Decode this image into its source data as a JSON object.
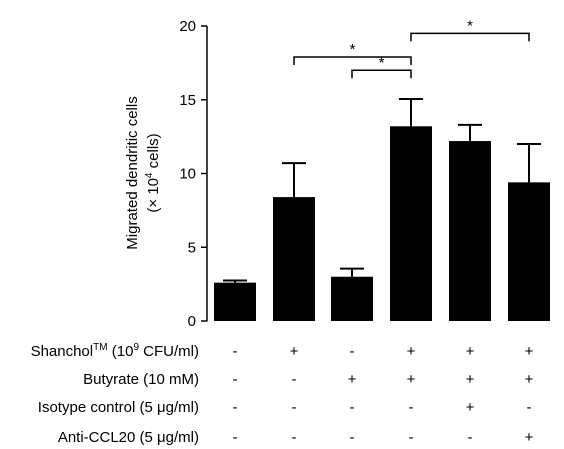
{
  "chart_data": {
    "type": "bar",
    "ylabel_line1": "Migrated dendritic cells",
    "ylabel_line2_prefix": "(× 10",
    "ylabel_line2_sup": "4",
    "ylabel_line2_suffix": " cells)",
    "ylim": [
      0,
      20
    ],
    "yticks": [
      0,
      5,
      10,
      15,
      20
    ],
    "values": [
      2.6,
      8.4,
      3.0,
      13.2,
      12.2,
      9.4
    ],
    "errors": [
      0.15,
      2.3,
      0.55,
      1.85,
      1.1,
      2.6
    ],
    "bar_color": "#000000",
    "conditions": [
      {
        "label_main": "Shanchol",
        "label_sup": "TM",
        "label_rest": " (10",
        "label_sup2": "9",
        "label_end": " CFU/ml)",
        "marks": [
          "-",
          "+",
          "-",
          "+",
          "+",
          "+"
        ]
      },
      {
        "label_main": "Butyrate (10 mM)",
        "marks": [
          "-",
          "-",
          "+",
          "+",
          "+",
          "+"
        ]
      },
      {
        "label_main": "Isotype control (5 μg/ml)",
        "marks": [
          "-",
          "-",
          "-",
          "-",
          "+",
          "-"
        ]
      },
      {
        "label_main": "Anti-CCL20 (5 μg/ml)",
        "marks": [
          "-",
          "-",
          "-",
          "-",
          "-",
          "+"
        ]
      }
    ],
    "significance": [
      {
        "from": 1,
        "to": 3,
        "y": 17.9,
        "label": "*"
      },
      {
        "from": 2,
        "to": 3,
        "y": 17.0,
        "label": "*"
      },
      {
        "from": 3,
        "to": 5,
        "y": 19.5,
        "label": "*"
      }
    ]
  }
}
